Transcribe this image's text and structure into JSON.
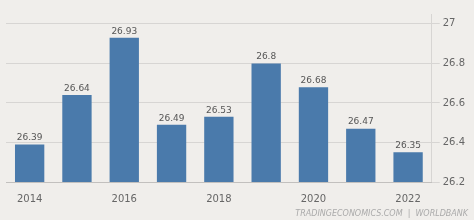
{
  "chart_data": {
    "type": "bar",
    "categories": [
      "2014",
      null,
      "2016",
      null,
      "2018",
      null,
      "2020",
      null,
      "2022"
    ],
    "values": [
      26.39,
      26.64,
      26.93,
      26.49,
      26.53,
      26.8,
      26.68,
      26.47,
      26.35
    ],
    "color": "#4a7aab",
    "ylim": [
      26.2,
      27.05
    ],
    "yticks": [
      26.2,
      26.4,
      26.6,
      26.8,
      27
    ],
    "grid": true,
    "data_labels": true,
    "annotations": [
      "TRADINGECONOMICS.COM  |  WORLDBANK"
    ]
  }
}
